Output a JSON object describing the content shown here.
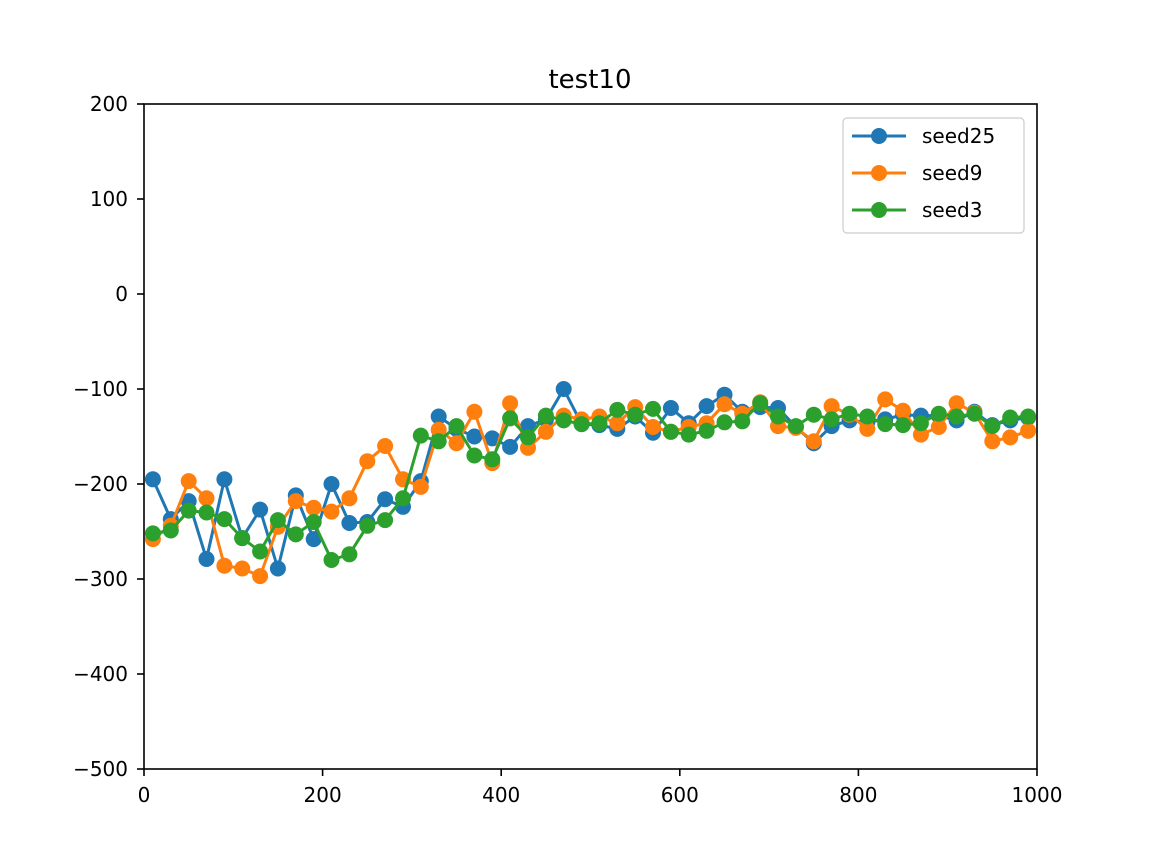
{
  "chart_data": {
    "type": "line",
    "title": "test10",
    "xlabel": "",
    "ylabel": "",
    "xlim": [
      0,
      1000
    ],
    "ylim": [
      -500,
      200
    ],
    "xticks": [
      0,
      200,
      400,
      600,
      800,
      1000
    ],
    "xtick_labels": [
      "0",
      "200",
      "400",
      "600",
      "800",
      "1000"
    ],
    "yticks": [
      200,
      100,
      0,
      -100,
      -200,
      -300,
      -400,
      -500
    ],
    "ytick_labels": [
      "200",
      "100",
      "0",
      "−100",
      "−200",
      "−300",
      "−400",
      "−500"
    ],
    "grid": false,
    "legend_position": "top-right",
    "x": [
      10,
      30,
      50,
      70,
      90,
      110,
      130,
      150,
      170,
      190,
      210,
      230,
      250,
      270,
      290,
      310,
      330,
      350,
      370,
      390,
      410,
      430,
      450,
      470,
      490,
      510,
      530,
      550,
      570,
      590,
      610,
      630,
      650,
      670,
      690,
      710,
      730,
      750,
      770,
      790,
      810,
      830,
      850,
      870,
      890,
      910,
      930,
      950,
      970,
      990
    ],
    "series": [
      {
        "name": "seed25",
        "color": "#1f77b4",
        "values": [
          -195,
          -237,
          -218,
          -279,
          -195,
          -257,
          -227,
          -289,
          -212,
          -258,
          -200,
          -241,
          -240,
          -216,
          -224,
          -197,
          -129,
          -142,
          -150,
          -152,
          -161,
          -139,
          -132,
          -100,
          -137,
          -138,
          -142,
          -129,
          -146,
          -120,
          -136,
          -118,
          -106,
          -124,
          -119,
          -120,
          -140,
          -157,
          -139,
          -133,
          -135,
          -132,
          -127,
          -128,
          -128,
          -133,
          -124,
          -138,
          -133,
          -130
        ]
      },
      {
        "name": "seed9",
        "color": "#ff7f0e",
        "values": [
          -258,
          -244,
          -197,
          -215,
          -286,
          -289,
          -297,
          -245,
          -218,
          -225,
          -229,
          -215,
          -176,
          -160,
          -195,
          -203,
          -143,
          -157,
          -124,
          -178,
          -115,
          -162,
          -145,
          -128,
          -132,
          -129,
          -136,
          -119,
          -140,
          -145,
          -140,
          -136,
          -116,
          -126,
          -114,
          -139,
          -141,
          -155,
          -118,
          -127,
          -142,
          -111,
          -123,
          -148,
          -140,
          -115,
          -125,
          -155,
          -151,
          -144
        ]
      },
      {
        "name": "seed3",
        "color": "#2ca02c",
        "values": [
          -252,
          -249,
          -228,
          -230,
          -237,
          -257,
          -271,
          -238,
          -253,
          -240,
          -280,
          -274,
          -244,
          -238,
          -215,
          -149,
          -155,
          -139,
          -170,
          -174,
          -131,
          -151,
          -128,
          -133,
          -137,
          -136,
          -122,
          -127,
          -121,
          -145,
          -148,
          -144,
          -135,
          -134,
          -115,
          -129,
          -139,
          -127,
          -132,
          -126,
          -129,
          -137,
          -138,
          -136,
          -126,
          -129,
          -126,
          -139,
          -130,
          -129
        ]
      }
    ]
  }
}
